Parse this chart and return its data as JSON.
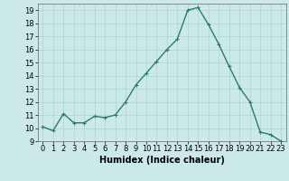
{
  "x": [
    0,
    1,
    2,
    3,
    4,
    5,
    6,
    7,
    8,
    9,
    10,
    11,
    12,
    13,
    14,
    15,
    16,
    17,
    18,
    19,
    20,
    21,
    22,
    23
  ],
  "y": [
    10.1,
    9.8,
    11.1,
    10.4,
    10.4,
    10.9,
    10.8,
    11.0,
    12.0,
    13.3,
    14.2,
    15.1,
    16.0,
    16.8,
    19.0,
    19.2,
    17.9,
    16.4,
    14.7,
    13.1,
    12.0,
    9.7,
    9.5,
    9.0
  ],
  "line_color": "#2d7a6a",
  "marker": "+",
  "marker_size": 3,
  "linewidth": 1.0,
  "bg_color": "#cce9e9",
  "grid_color": "#aad4d4",
  "xlabel": "Humidex (Indice chaleur)",
  "xlabel_fontsize": 7,
  "tick_fontsize": 6,
  "ylim": [
    9,
    19.5
  ],
  "xlim": [
    -0.5,
    23.5
  ],
  "yticks": [
    9,
    10,
    11,
    12,
    13,
    14,
    15,
    16,
    17,
    18,
    19
  ],
  "xticks": [
    0,
    1,
    2,
    3,
    4,
    5,
    6,
    7,
    8,
    9,
    10,
    11,
    12,
    13,
    14,
    15,
    16,
    17,
    18,
    19,
    20,
    21,
    22,
    23
  ]
}
